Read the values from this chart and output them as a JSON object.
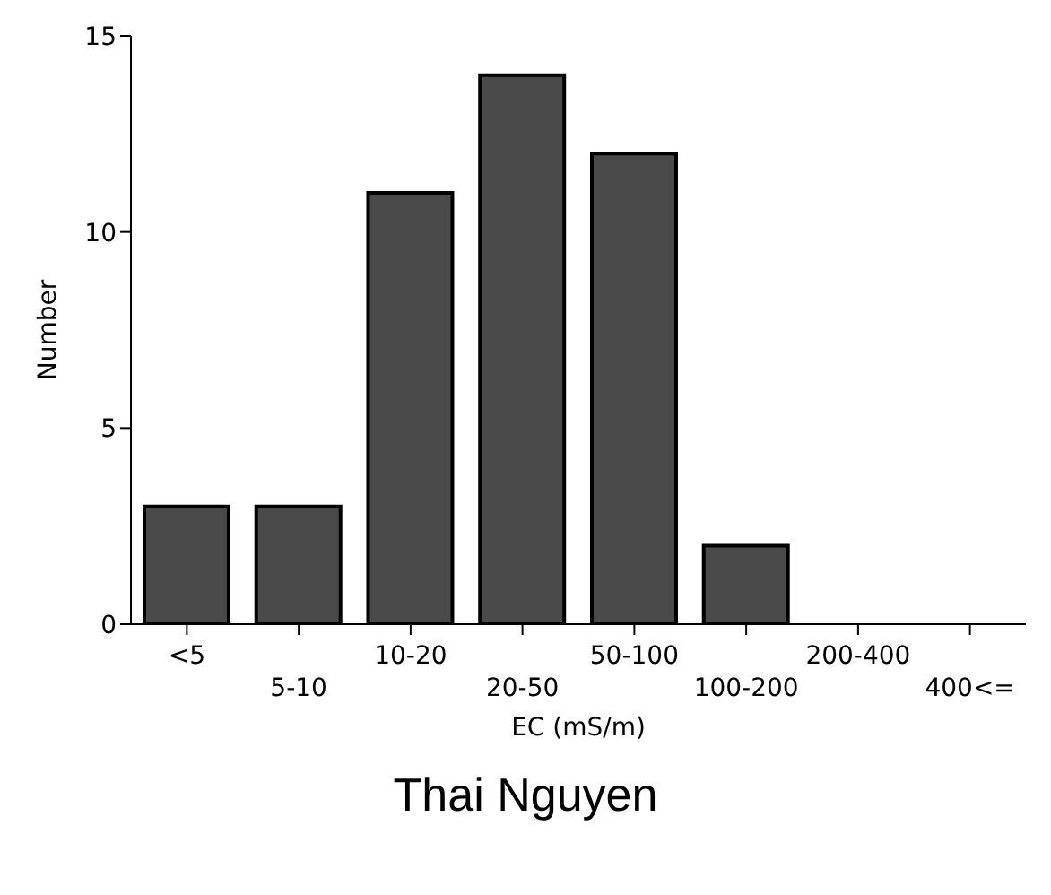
{
  "chart_data": {
    "type": "bar",
    "title": "Thai Nguyen",
    "xlabel": "EC (mS/m)",
    "ylabel": "Number",
    "categories": [
      "<5",
      "5-10",
      "10-20",
      "20-50",
      "50-100",
      "100-200",
      "200-400",
      "400<="
    ],
    "values": [
      3,
      3,
      11,
      14,
      12,
      2,
      0,
      0
    ],
    "color": "#4a4a4a",
    "ylim": [
      0,
      15
    ],
    "yticks": [
      0,
      5,
      10,
      15
    ],
    "grid": false
  }
}
